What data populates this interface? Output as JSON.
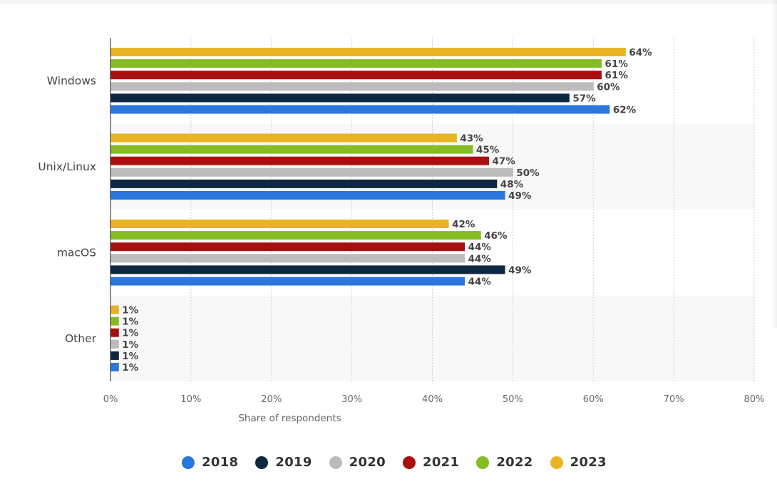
{
  "chart_data": {
    "type": "bar",
    "orientation": "horizontal",
    "categories": [
      "Windows",
      "Unix/Linux",
      "macOS",
      "Other"
    ],
    "series": [
      {
        "name": "2023",
        "color": "#e8b424",
        "values": [
          64,
          43,
          42,
          1
        ]
      },
      {
        "name": "2022",
        "color": "#85bc22",
        "values": [
          61,
          45,
          46,
          1
        ]
      },
      {
        "name": "2021",
        "color": "#a90f0f",
        "values": [
          61,
          47,
          44,
          1
        ]
      },
      {
        "name": "2020",
        "color": "#bcbcbc",
        "values": [
          60,
          50,
          44,
          1
        ]
      },
      {
        "name": "2019",
        "color": "#0e2740",
        "values": [
          57,
          48,
          49,
          1
        ]
      },
      {
        "name": "2018",
        "color": "#2a77dd",
        "values": [
          62,
          49,
          44,
          1
        ]
      }
    ],
    "value_suffix": "%",
    "xlim": [
      0,
      80
    ],
    "x_ticks": [
      "0%",
      "10%",
      "20%",
      "30%",
      "40%",
      "50%",
      "60%",
      "70%",
      "80%"
    ],
    "xlabel": "Share of respondents",
    "ylabel": "",
    "grid": "vertical dotted",
    "legend": {
      "position": "bottom-center",
      "items": [
        {
          "label": "2018",
          "color": "#2a77dd"
        },
        {
          "label": "2019",
          "color": "#0e2740"
        },
        {
          "label": "2020",
          "color": "#bcbcbc"
        },
        {
          "label": "2021",
          "color": "#a90f0f"
        },
        {
          "label": "2022",
          "color": "#85bc22"
        },
        {
          "label": "2023",
          "color": "#e8b424"
        }
      ]
    }
  }
}
